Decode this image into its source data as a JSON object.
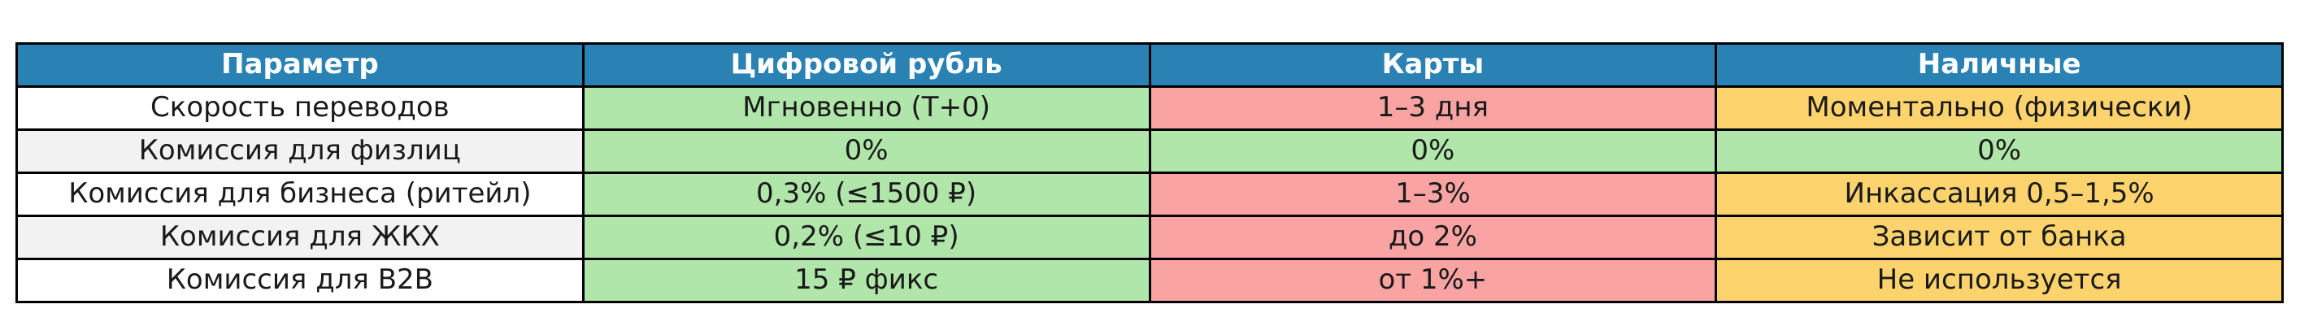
{
  "colors": {
    "header_bg": "#2a82b4",
    "header_text": "#ffffff",
    "green": "#b0e6aa",
    "pink": "#f9a3a3",
    "yellow": "#fcd36d",
    "stripe": "#f2f2f2",
    "border": "#000000",
    "text": "#1a1a1a"
  },
  "table": {
    "columns": [
      "Параметр",
      "Цифровой рубль",
      "Карты",
      "Наличные"
    ],
    "rows": [
      {
        "param": "Скорость переводов",
        "cells": [
          {
            "text": "Мгновенно (T+0)",
            "status": "green"
          },
          {
            "text": "1–3 дня",
            "status": "pink"
          },
          {
            "text": "Моментально (физически)",
            "status": "yellow"
          }
        ]
      },
      {
        "param": "Комиссия для физлиц",
        "cells": [
          {
            "text": "0%",
            "status": "green"
          },
          {
            "text": "0%",
            "status": "green"
          },
          {
            "text": "0%",
            "status": "green"
          }
        ]
      },
      {
        "param": "Комиссия для бизнеса (ритейл)",
        "cells": [
          {
            "text": "0,3% (≤1500 ₽)",
            "status": "green"
          },
          {
            "text": "1–3%",
            "status": "pink"
          },
          {
            "text": "Инкассация 0,5–1,5%",
            "status": "yellow"
          }
        ]
      },
      {
        "param": "Комиссия для ЖКХ",
        "cells": [
          {
            "text": "0,2% (≤10 ₽)",
            "status": "green"
          },
          {
            "text": "до 2%",
            "status": "pink"
          },
          {
            "text": "Зависит от банка",
            "status": "yellow"
          }
        ]
      },
      {
        "param": "Комиссия для B2B",
        "cells": [
          {
            "text": "15 ₽ фикс",
            "status": "green"
          },
          {
            "text": "от 1%+",
            "status": "pink"
          },
          {
            "text": "Не используется",
            "status": "yellow"
          }
        ]
      }
    ]
  },
  "chart_data": {
    "type": "table",
    "title": "",
    "columns": [
      "Параметр",
      "Цифровой рубль",
      "Карты",
      "Наличные"
    ],
    "rows": [
      [
        "Скорость переводов",
        "Мгновенно (T+0)",
        "1–3 дня",
        "Моментально (физически)"
      ],
      [
        "Комиссия для физлиц",
        "0%",
        "0%",
        "0%"
      ],
      [
        "Комиссия для бизнеса (ритейл)",
        "0,3% (≤1500 ₽)",
        "1–3%",
        "Инкассация 0,5–1,5%"
      ],
      [
        "Комиссия для ЖКХ",
        "0,2% (≤10 ₽)",
        "до 2%",
        "Зависит от банка"
      ],
      [
        "Комиссия для B2B",
        "15 ₽ фикс",
        "от 1%+",
        "Не используется"
      ]
    ],
    "cell_status_colors": [
      [
        "none",
        "green",
        "pink",
        "yellow"
      ],
      [
        "none",
        "green",
        "green",
        "green"
      ],
      [
        "none",
        "green",
        "pink",
        "yellow"
      ],
      [
        "none",
        "green",
        "pink",
        "yellow"
      ],
      [
        "none",
        "green",
        "pink",
        "yellow"
      ]
    ]
  }
}
